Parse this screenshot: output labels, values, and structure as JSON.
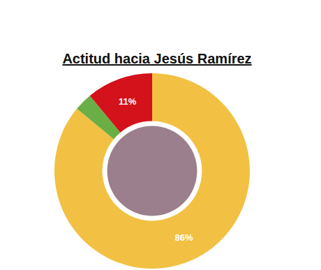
{
  "chart_data": {
    "type": "donut",
    "title": "Actitud hacia Jesús Ramírez",
    "categories": [
      null,
      null,
      null
    ],
    "values": [
      86,
      3,
      11
    ],
    "value_labels": [
      "86%",
      null,
      "11%"
    ],
    "colors": [
      "#f2c043",
      "#6aaf45",
      "#d4121b"
    ],
    "data_labels": true
  }
}
